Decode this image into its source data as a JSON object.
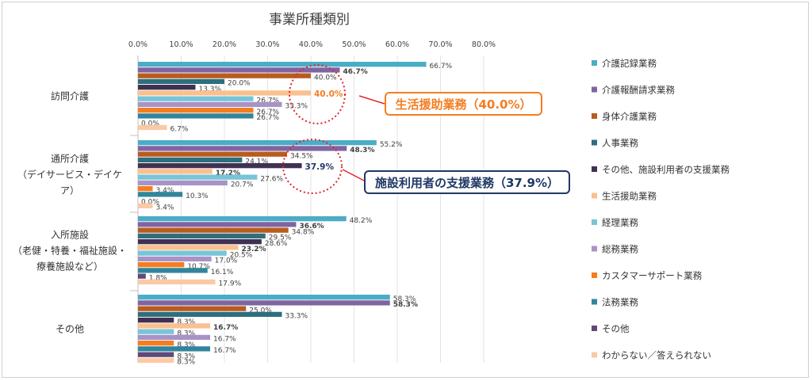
{
  "chart_data": {
    "type": "bar",
    "orientation": "horizontal",
    "title": "事業所種類別",
    "xlim": [
      0,
      80
    ],
    "xticks": [
      "0.0%",
      "10.0%",
      "20.0%",
      "30.0%",
      "40.0%",
      "50.0%",
      "60.0%",
      "70.0%",
      "80.0%"
    ],
    "grid": true,
    "legend_position": "right",
    "categories": [
      [
        "訪問介護"
      ],
      [
        "通所介護",
        "（デイサービス・デイケ",
        "ア）"
      ],
      [
        "入所施設",
        "（老健・特養・福祉施設・",
        "療養施設など）"
      ],
      [
        "その他"
      ]
    ],
    "series": [
      {
        "name": "介護記録業務",
        "color": "#4bacc6",
        "values": [
          66.7,
          55.2,
          48.2,
          58.3
        ],
        "labels": [
          "66.7%",
          "55.2%",
          "48.2%",
          "58.3%"
        ]
      },
      {
        "name": "介護報酬請求業務",
        "color": "#8064a2",
        "values": [
          46.7,
          48.3,
          36.6,
          58.3
        ],
        "labels": [
          "46.7%",
          "48.3%",
          "36.6%",
          "58.3%"
        ],
        "bold": true
      },
      {
        "name": "身体介護業務",
        "color": "#b85c1e",
        "values": [
          40.0,
          34.5,
          34.8,
          25.0
        ],
        "labels": [
          "40.0%",
          "34.5%",
          "34.8%",
          "25.0%"
        ]
      },
      {
        "name": "人事業務",
        "color": "#2e6e7e",
        "values": [
          20.0,
          24.1,
          29.5,
          33.3
        ],
        "labels": [
          "20.0%",
          "24.1%",
          "29.5%",
          "33.3%"
        ]
      },
      {
        "name": "その他、施設利用者の支援業務",
        "color": "#403152",
        "values": [
          13.3,
          37.9,
          28.6,
          8.3
        ],
        "labels": [
          "13.3%",
          "37.9%",
          "28.6%",
          "8.3%"
        ]
      },
      {
        "name": "生活援助業務",
        "color": "#fac08f",
        "values": [
          40.0,
          17.2,
          23.2,
          16.7
        ],
        "labels": [
          "40.0%",
          "17.2%",
          "23.2%",
          "16.7%"
        ],
        "bold": true
      },
      {
        "name": "経理業務",
        "color": "#79c4d7",
        "values": [
          26.7,
          27.6,
          20.5,
          8.3
        ],
        "labels": [
          "26.7%",
          "27.6%",
          "20.5%",
          "8.3%"
        ]
      },
      {
        "name": "総務業務",
        "color": "#a893c7",
        "values": [
          33.3,
          20.7,
          17.0,
          16.7
        ],
        "labels": [
          "33.3%",
          "20.7%",
          "17.0%",
          "16.7%"
        ]
      },
      {
        "name": "カスタマーサポート業務",
        "color": "#f47d20",
        "values": [
          26.7,
          3.4,
          10.7,
          8.3
        ],
        "labels": [
          "26.7%",
          "3.4%",
          "10.7%",
          "8.3%"
        ]
      },
      {
        "name": "法務業務",
        "color": "#31859c",
        "values": [
          26.7,
          10.3,
          16.1,
          16.7
        ],
        "labels": [
          "26.7%",
          "10.3%",
          "16.1%",
          "16.7%"
        ]
      },
      {
        "name": "その他",
        "color": "#5f497a",
        "values": [
          0.0,
          0.0,
          1.8,
          8.3
        ],
        "labels": [
          "0.0%",
          "0.0%",
          "1.8%",
          "8.3%"
        ]
      },
      {
        "name": "わからない／答えられない",
        "color": "#fbc9a4",
        "values": [
          6.7,
          3.4,
          17.9,
          8.3
        ],
        "labels": [
          "6.7%",
          "3.4%",
          "17.9%",
          "8.3%"
        ]
      }
    ],
    "annotations": [
      {
        "text": "生活援助業務（40.0%）",
        "color": "#f47d20",
        "category": 0,
        "series": 5
      },
      {
        "text": "施設利用者の支援業務（37.9%）",
        "color": "#1f3864",
        "category": 1,
        "series": 4
      }
    ]
  }
}
